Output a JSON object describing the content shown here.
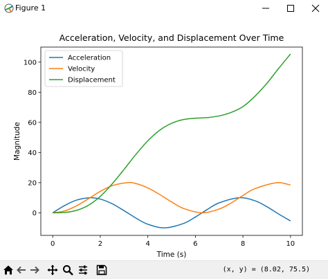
{
  "window": {
    "title": "Figure 1",
    "controls": [
      "minimize",
      "maximize",
      "close"
    ]
  },
  "toolbar": {
    "buttons": [
      "home-icon",
      "back-icon",
      "forward-icon",
      "pan-icon",
      "zoom-icon",
      "configure-subplots-icon",
      "save-icon"
    ],
    "coords": "(x, y) = (8.02, 75.5)"
  },
  "colors": {
    "acceleration": "#1f77b4",
    "velocity": "#ff7f0e",
    "displacement": "#2ca02c"
  },
  "chart_data": {
    "type": "line",
    "title": "Acceleration, Velocity, and Displacement Over Time",
    "xlabel": "Time (s)",
    "ylabel": "Magnitude",
    "xlim": [
      -0.5,
      10.5
    ],
    "ylim": [
      -15,
      110
    ],
    "xticks": [
      0,
      2,
      4,
      6,
      8,
      10
    ],
    "yticks": [
      0,
      20,
      40,
      60,
      80,
      100
    ],
    "grid": false,
    "legend_position": "upper-left",
    "series": [
      {
        "name": "Acceleration",
        "color": "#1f77b4",
        "x": [
          0,
          0.5,
          1,
          1.57,
          2,
          2.5,
          3,
          3.5,
          4,
          4.71,
          5.5,
          6,
          6.5,
          7,
          7.85,
          8.5,
          9,
          9.5,
          10
        ],
        "y": [
          0,
          4.8,
          8.4,
          10,
          9.1,
          6.0,
          1.4,
          -3.5,
          -7.6,
          -10,
          -7.1,
          -2.8,
          2.2,
          6.6,
          10,
          8.0,
          4.1,
          -0.8,
          -5.4
        ]
      },
      {
        "name": "Velocity",
        "color": "#ff7f0e",
        "x": [
          0,
          0.5,
          1,
          1.5,
          2,
          2.5,
          3.14,
          3.5,
          4,
          4.5,
          5,
          5.5,
          6.28,
          7,
          7.5,
          8,
          8.5,
          9.42,
          10
        ],
        "y": [
          0,
          1.2,
          4.6,
          9.3,
          14.2,
          18.0,
          20,
          19.4,
          16.5,
          12.1,
          7.2,
          2.9,
          0,
          2.5,
          6.5,
          11.5,
          16.0,
          20,
          18.4
        ]
      },
      {
        "name": "Displacement",
        "color": "#2ca02c",
        "x": [
          0,
          0.5,
          1,
          1.5,
          2,
          2.5,
          3,
          3.5,
          4,
          4.5,
          5,
          5.5,
          6,
          6.5,
          7,
          7.5,
          8,
          8.5,
          9,
          9.5,
          10
        ],
        "y": [
          0,
          0.2,
          1.6,
          5.0,
          10.9,
          19.2,
          28.8,
          38.8,
          47.8,
          54.8,
          59.4,
          61.9,
          62.8,
          63.2,
          64.3,
          66.6,
          70.5,
          77.3,
          85.8,
          95.8,
          105.4
        ]
      }
    ]
  }
}
